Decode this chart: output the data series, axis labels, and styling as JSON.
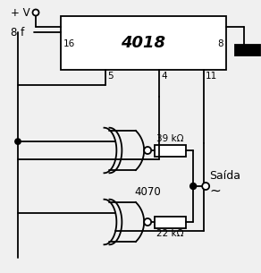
{
  "bg_color": "#f0f0f0",
  "line_color": "#000000",
  "ic_label": "4018",
  "xor_label": "4070",
  "pin_labels": [
    "16",
    "8",
    "5",
    "4",
    "11"
  ],
  "vcc_label": "+ V",
  "freq_label": "8 f",
  "res1_label": "39 kΩ",
  "res2_label": "22 kΩ",
  "saida_label": "Saída",
  "tilde": "~"
}
